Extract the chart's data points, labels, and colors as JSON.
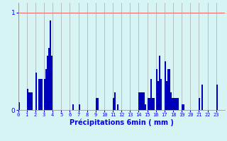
{
  "xlabel": "Précipitations 6min ( mm )",
  "bar_color": "#0000bb",
  "background_color": "#d8f5f5",
  "grid_color_x": "#aaaaaa",
  "grid_color_y": "#ff4444",
  "ylim": [
    0,
    1.1
  ],
  "yticks": [
    0,
    1
  ],
  "values": [
    0.08,
    0.0,
    0.0,
    0.0,
    0.0,
    0.0,
    0.22,
    0.18,
    0.18,
    0.18,
    0.0,
    0.0,
    0.38,
    0.0,
    0.32,
    0.32,
    0.32,
    0.0,
    0.32,
    0.42,
    0.56,
    0.64,
    0.92,
    0.56,
    0.0,
    0.0,
    0.0,
    0.0,
    0.0,
    0.0,
    0.0,
    0.0,
    0.0,
    0.0,
    0.0,
    0.0,
    0.0,
    0.0,
    0.06,
    0.0,
    0.0,
    0.0,
    0.06,
    0.0,
    0.0,
    0.0,
    0.0,
    0.0,
    0.0,
    0.0,
    0.0,
    0.0,
    0.0,
    0.0,
    0.12,
    0.12,
    0.0,
    0.0,
    0.0,
    0.0,
    0.0,
    0.0,
    0.0,
    0.0,
    0.0,
    0.0,
    0.12,
    0.18,
    0.0,
    0.06,
    0.0,
    0.0,
    0.0,
    0.0,
    0.0,
    0.0,
    0.0,
    0.0,
    0.0,
    0.0,
    0.0,
    0.0,
    0.0,
    0.0,
    0.18,
    0.18,
    0.18,
    0.18,
    0.06,
    0.0,
    0.12,
    0.12,
    0.32,
    0.12,
    0.12,
    0.0,
    0.42,
    0.3,
    0.56,
    0.32,
    0.0,
    0.0,
    0.5,
    0.3,
    0.42,
    0.42,
    0.18,
    0.12,
    0.12,
    0.12,
    0.12,
    0.12,
    0.0,
    0.0,
    0.06,
    0.06,
    0.0,
    0.0,
    0.0,
    0.0,
    0.0,
    0.0,
    0.0,
    0.0,
    0.0,
    0.0,
    0.12,
    0.0,
    0.26,
    0.0,
    0.0,
    0.0,
    0.0,
    0.0,
    0.0,
    0.0,
    0.0,
    0.0,
    0.26,
    0.0,
    0.0,
    0.0,
    0.0,
    0.0
  ],
  "xtick_positions": [
    0,
    6,
    12,
    18,
    24,
    30,
    36,
    42,
    48,
    54,
    60,
    66,
    72,
    78,
    84,
    90,
    96,
    102,
    108,
    114,
    120,
    126,
    132,
    138
  ],
  "xtick_labels": [
    "0",
    "1",
    "2",
    "3",
    "4",
    "5",
    "6",
    "7",
    "8",
    "9",
    "10",
    "11",
    "12",
    "13",
    "14",
    "15",
    "16",
    "17",
    "18",
    "19",
    "20",
    "21",
    "22",
    "23"
  ]
}
